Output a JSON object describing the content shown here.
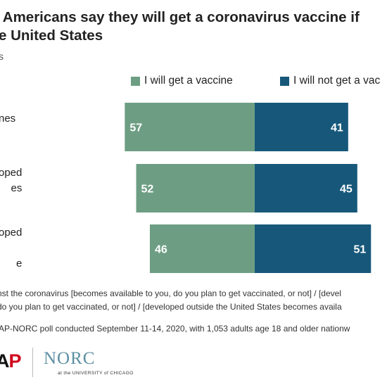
{
  "title": {
    "line1": "f Americans say they will get a coronavirus vaccine if",
    "line2": "e United States"
  },
  "subtitle": "s",
  "colors": {
    "vaccine": "#6d9e83",
    "no_vaccine": "#17587a"
  },
  "chart_data": {
    "type": "bar",
    "orientation": "horizontal-diverging",
    "categories": [
      [
        "nes"
      ],
      [
        "oped",
        "es"
      ],
      [
        "oped",
        "",
        "e"
      ]
    ],
    "series": [
      {
        "name": "I will get a vaccine",
        "values": [
          57,
          52,
          46
        ]
      },
      {
        "name": "I will not get a vaccine",
        "values": [
          41,
          45,
          51
        ]
      }
    ],
    "legend_placement": "top",
    "grid": false
  },
  "legend": {
    "vaccine": "I will get a vaccine",
    "no_vaccine": "I will not get a vac"
  },
  "notes": {
    "line1": "nst the coronavirus [becomes available to you, do you plan to get vaccinated, or not] / [devel",
    "line2": "do you plan to get vaccinated, or not] / [developed  outside the United States becomes  availa"
  },
  "source": "AP-NORC poll conducted September 11-14, 2020, with 1,053 adults age 18 and older nationw",
  "logos": {
    "ap_a": "A",
    "ap_p": "P",
    "norc": "NORC",
    "norc_sub": "at the UNIVERSITY of CHICAGO"
  }
}
